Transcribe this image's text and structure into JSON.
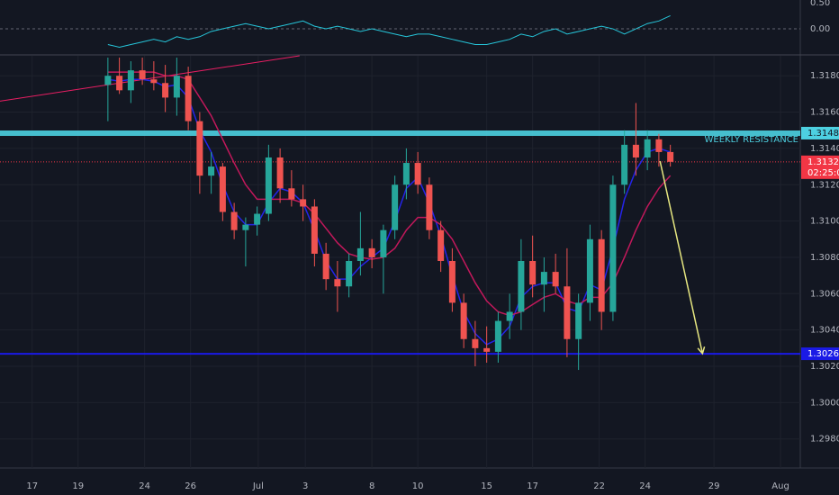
{
  "chart_data": [
    {
      "type": "line",
      "x": [
        4.7,
        5.2,
        5.7,
        6.2,
        6.7,
        7.2,
        7.7,
        8.2,
        8.7,
        9.2,
        9.7,
        10.2,
        10.7,
        11.2,
        11.7,
        12.2,
        12.7,
        13.2,
        13.7,
        14.2,
        14.7,
        15.2,
        15.7,
        16.2,
        16.7,
        17.2,
        17.7,
        18.2,
        18.7,
        19.2,
        19.7,
        20.2,
        20.7,
        21.2,
        21.7,
        22.2,
        22.7,
        23.2,
        23.7,
        24.2,
        24.7,
        25.2,
        25.7,
        26.2,
        26.7,
        27.2,
        27.7,
        28.2,
        28.7,
        29.2
      ],
      "values": [
        -0.3,
        -0.35,
        -0.3,
        -0.25,
        -0.2,
        -0.25,
        -0.15,
        -0.2,
        -0.15,
        -0.05,
        0.0,
        0.05,
        0.1,
        0.05,
        0.0,
        0.05,
        0.1,
        0.15,
        0.05,
        0.0,
        0.05,
        0.0,
        -0.05,
        0.0,
        -0.05,
        -0.1,
        -0.15,
        -0.1,
        -0.1,
        -0.15,
        -0.2,
        -0.25,
        -0.3,
        -0.3,
        -0.25,
        -0.2,
        -0.1,
        -0.15,
        -0.05,
        0.0,
        -0.1,
        -0.05,
        0.0,
        0.05,
        0.0,
        -0.1,
        0.0,
        0.1,
        0.15,
        0.25
      ],
      "color": "#26c6da",
      "xlim": [
        0,
        34.86
      ],
      "ylim": [
        -0.48,
        0.55
      ],
      "yticks": [
        {
          "value": 0.5,
          "label": "0.50"
        },
        {
          "value": 0,
          "label": "0.00"
        }
      ]
    },
    {
      "type": "candlestick",
      "x": [
        4.7,
        5.2,
        5.7,
        6.2,
        6.7,
        7.2,
        7.7,
        8.2,
        8.7,
        9.2,
        9.7,
        10.2,
        10.7,
        11.2,
        11.7,
        12.2,
        12.7,
        13.2,
        13.7,
        14.2,
        14.7,
        15.2,
        15.7,
        16.2,
        16.7,
        17.2,
        17.7,
        18.2,
        18.7,
        19.2,
        19.7,
        20.2,
        20.7,
        21.2,
        21.7,
        22.2,
        22.7,
        23.2,
        23.7,
        24.2,
        24.7,
        25.2,
        25.7,
        26.2,
        26.7,
        27.2,
        27.7,
        28.2,
        28.7,
        29.2
      ],
      "open": [
        1.3175,
        1.318,
        1.3172,
        1.3183,
        1.3178,
        1.3176,
        1.3168,
        1.318,
        1.3155,
        1.3125,
        1.313,
        1.3105,
        1.3095,
        1.3098,
        1.3104,
        1.3135,
        1.3118,
        1.3112,
        1.3108,
        1.3082,
        1.3068,
        1.3064,
        1.3078,
        1.3085,
        1.308,
        1.3095,
        1.312,
        1.3132,
        1.312,
        1.3095,
        1.3078,
        1.3055,
        1.3035,
        1.303,
        1.3028,
        1.3045,
        1.305,
        1.3078,
        1.3065,
        1.3072,
        1.3064,
        1.3035,
        1.3055,
        1.309,
        1.305,
        1.312,
        1.3142,
        1.3135,
        1.3145,
        1.3138
      ],
      "high": [
        1.319,
        1.319,
        1.3188,
        1.319,
        1.3188,
        1.3186,
        1.319,
        1.3185,
        1.316,
        1.3138,
        1.3132,
        1.311,
        1.3102,
        1.3108,
        1.3142,
        1.314,
        1.3128,
        1.312,
        1.3112,
        1.3088,
        1.3078,
        1.3082,
        1.3105,
        1.309,
        1.3098,
        1.3125,
        1.314,
        1.3138,
        1.3124,
        1.31,
        1.3085,
        1.306,
        1.3045,
        1.3042,
        1.305,
        1.306,
        1.309,
        1.3092,
        1.308,
        1.3082,
        1.3085,
        1.306,
        1.3098,
        1.3095,
        1.3125,
        1.315,
        1.3165,
        1.315,
        1.3148,
        1.3142
      ],
      "low": [
        1.3155,
        1.317,
        1.3165,
        1.3175,
        1.3172,
        1.316,
        1.3158,
        1.315,
        1.3115,
        1.3115,
        1.31,
        1.309,
        1.3075,
        1.3092,
        1.31,
        1.311,
        1.3108,
        1.31,
        1.3075,
        1.3062,
        1.305,
        1.3058,
        1.307,
        1.3074,
        1.306,
        1.309,
        1.3112,
        1.3115,
        1.309,
        1.3072,
        1.305,
        1.303,
        1.302,
        1.3022,
        1.3022,
        1.3035,
        1.304,
        1.3058,
        1.305,
        1.306,
        1.3025,
        1.3018,
        1.3045,
        1.304,
        1.3045,
        1.3115,
        1.3125,
        1.3128,
        1.313,
        1.313
      ],
      "close": [
        1.318,
        1.3172,
        1.3183,
        1.3178,
        1.3176,
        1.3168,
        1.318,
        1.3155,
        1.3125,
        1.313,
        1.3105,
        1.3095,
        1.3098,
        1.3104,
        1.3135,
        1.3118,
        1.3112,
        1.3108,
        1.3082,
        1.3068,
        1.3064,
        1.3078,
        1.3085,
        1.308,
        1.3095,
        1.312,
        1.3132,
        1.312,
        1.3095,
        1.3078,
        1.3055,
        1.3035,
        1.303,
        1.3028,
        1.3045,
        1.305,
        1.3078,
        1.3065,
        1.3072,
        1.3064,
        1.3035,
        1.3055,
        1.309,
        1.305,
        1.312,
        1.3142,
        1.3135,
        1.3145,
        1.3138,
        1.31326
      ],
      "up_color": "#26a69a",
      "down_color": "#ef5350",
      "overlays": [
        {
          "color": "#2424e8",
          "values": [
            1.3178,
            1.3177,
            1.3178,
            1.3178,
            1.3177,
            1.3174,
            1.3175,
            1.3168,
            1.315,
            1.3138,
            1.312,
            1.3105,
            1.3098,
            1.3098,
            1.311,
            1.3118,
            1.3116,
            1.311,
            1.3095,
            1.3078,
            1.3068,
            1.3068,
            1.3075,
            1.308,
            1.3085,
            1.31,
            1.3118,
            1.3124,
            1.311,
            1.3092,
            1.307,
            1.305,
            1.3038,
            1.3032,
            1.3035,
            1.3042,
            1.3058,
            1.3064,
            1.3066,
            1.3066,
            1.3052,
            1.305,
            1.3065,
            1.3062,
            1.3085,
            1.3112,
            1.3128,
            1.3138,
            1.314,
            1.3138
          ]
        },
        {
          "color": "#c2185b",
          "values": [
            1.3182,
            1.3182,
            1.3182,
            1.3182,
            1.3182,
            1.318,
            1.318,
            1.3178,
            1.3168,
            1.3158,
            1.3145,
            1.3132,
            1.312,
            1.3112,
            1.3112,
            1.3112,
            1.3112,
            1.311,
            1.3104,
            1.3096,
            1.3088,
            1.3082,
            1.308,
            1.3079,
            1.308,
            1.3085,
            1.3095,
            1.3102,
            1.3102,
            1.3098,
            1.309,
            1.3078,
            1.3066,
            1.3056,
            1.305,
            1.3048,
            1.305,
            1.3054,
            1.3058,
            1.306,
            1.3056,
            1.3054,
            1.3058,
            1.3058,
            1.3066,
            1.308,
            1.3095,
            1.3108,
            1.3118,
            1.3125
          ]
        }
      ],
      "xlim": [
        0,
        34.86
      ],
      "ylim": [
        1.2964,
        1.3191
      ],
      "yticks": [
        {
          "value": 1.318,
          "label": "1.31800"
        },
        {
          "value": 1.316,
          "label": "1.31600"
        },
        {
          "value": 1.314,
          "label": "1.31400"
        },
        {
          "value": 1.312,
          "label": "1.31200"
        },
        {
          "value": 1.31,
          "label": "1.31000"
        },
        {
          "value": 1.308,
          "label": "1.30800"
        },
        {
          "value": 1.306,
          "label": "1.30600"
        },
        {
          "value": 1.304,
          "label": "1.30400"
        },
        {
          "value": 1.302,
          "label": "1.30200"
        },
        {
          "value": 1.3,
          "label": "1.30000"
        },
        {
          "value": 1.298,
          "label": "1.29800"
        }
      ],
      "xticks": [
        {
          "value": 1.4,
          "label": "17"
        },
        {
          "value": 3.4,
          "label": "19"
        },
        {
          "value": 6.3,
          "label": "24"
        },
        {
          "value": 8.3,
          "label": "26"
        },
        {
          "value": 11.25,
          "label": "Jul"
        },
        {
          "value": 13.3,
          "label": "3"
        },
        {
          "value": 16.2,
          "label": "8"
        },
        {
          "value": 18.2,
          "label": "10"
        },
        {
          "value": 21.2,
          "label": "15"
        },
        {
          "value": 23.2,
          "label": "17"
        },
        {
          "value": 26.1,
          "label": "22"
        },
        {
          "value": 28.1,
          "label": "24"
        },
        {
          "value": 31.1,
          "label": "29"
        },
        {
          "value": 34.0,
          "label": "Aug"
        }
      ],
      "grid": true,
      "levels": [
        {
          "value": 1.31484,
          "color": "#4dd0e1",
          "label": "WEEKLY RESISTANCE"
        },
        {
          "value": 1.30269,
          "color": "#1a1ae6"
        }
      ],
      "last_price": {
        "value": 1.31326,
        "countdown": "02:25:05",
        "color": "#f23645"
      },
      "trendline": {
        "x": [
          0,
          13.05
        ],
        "y": [
          1.3166,
          1.3191
        ],
        "color": "#e91e63"
      },
      "arrow": {
        "x": [
          28.75,
          30.6
        ],
        "y": [
          1.3133,
          1.3027
        ],
        "color": "#e6e680"
      }
    }
  ]
}
